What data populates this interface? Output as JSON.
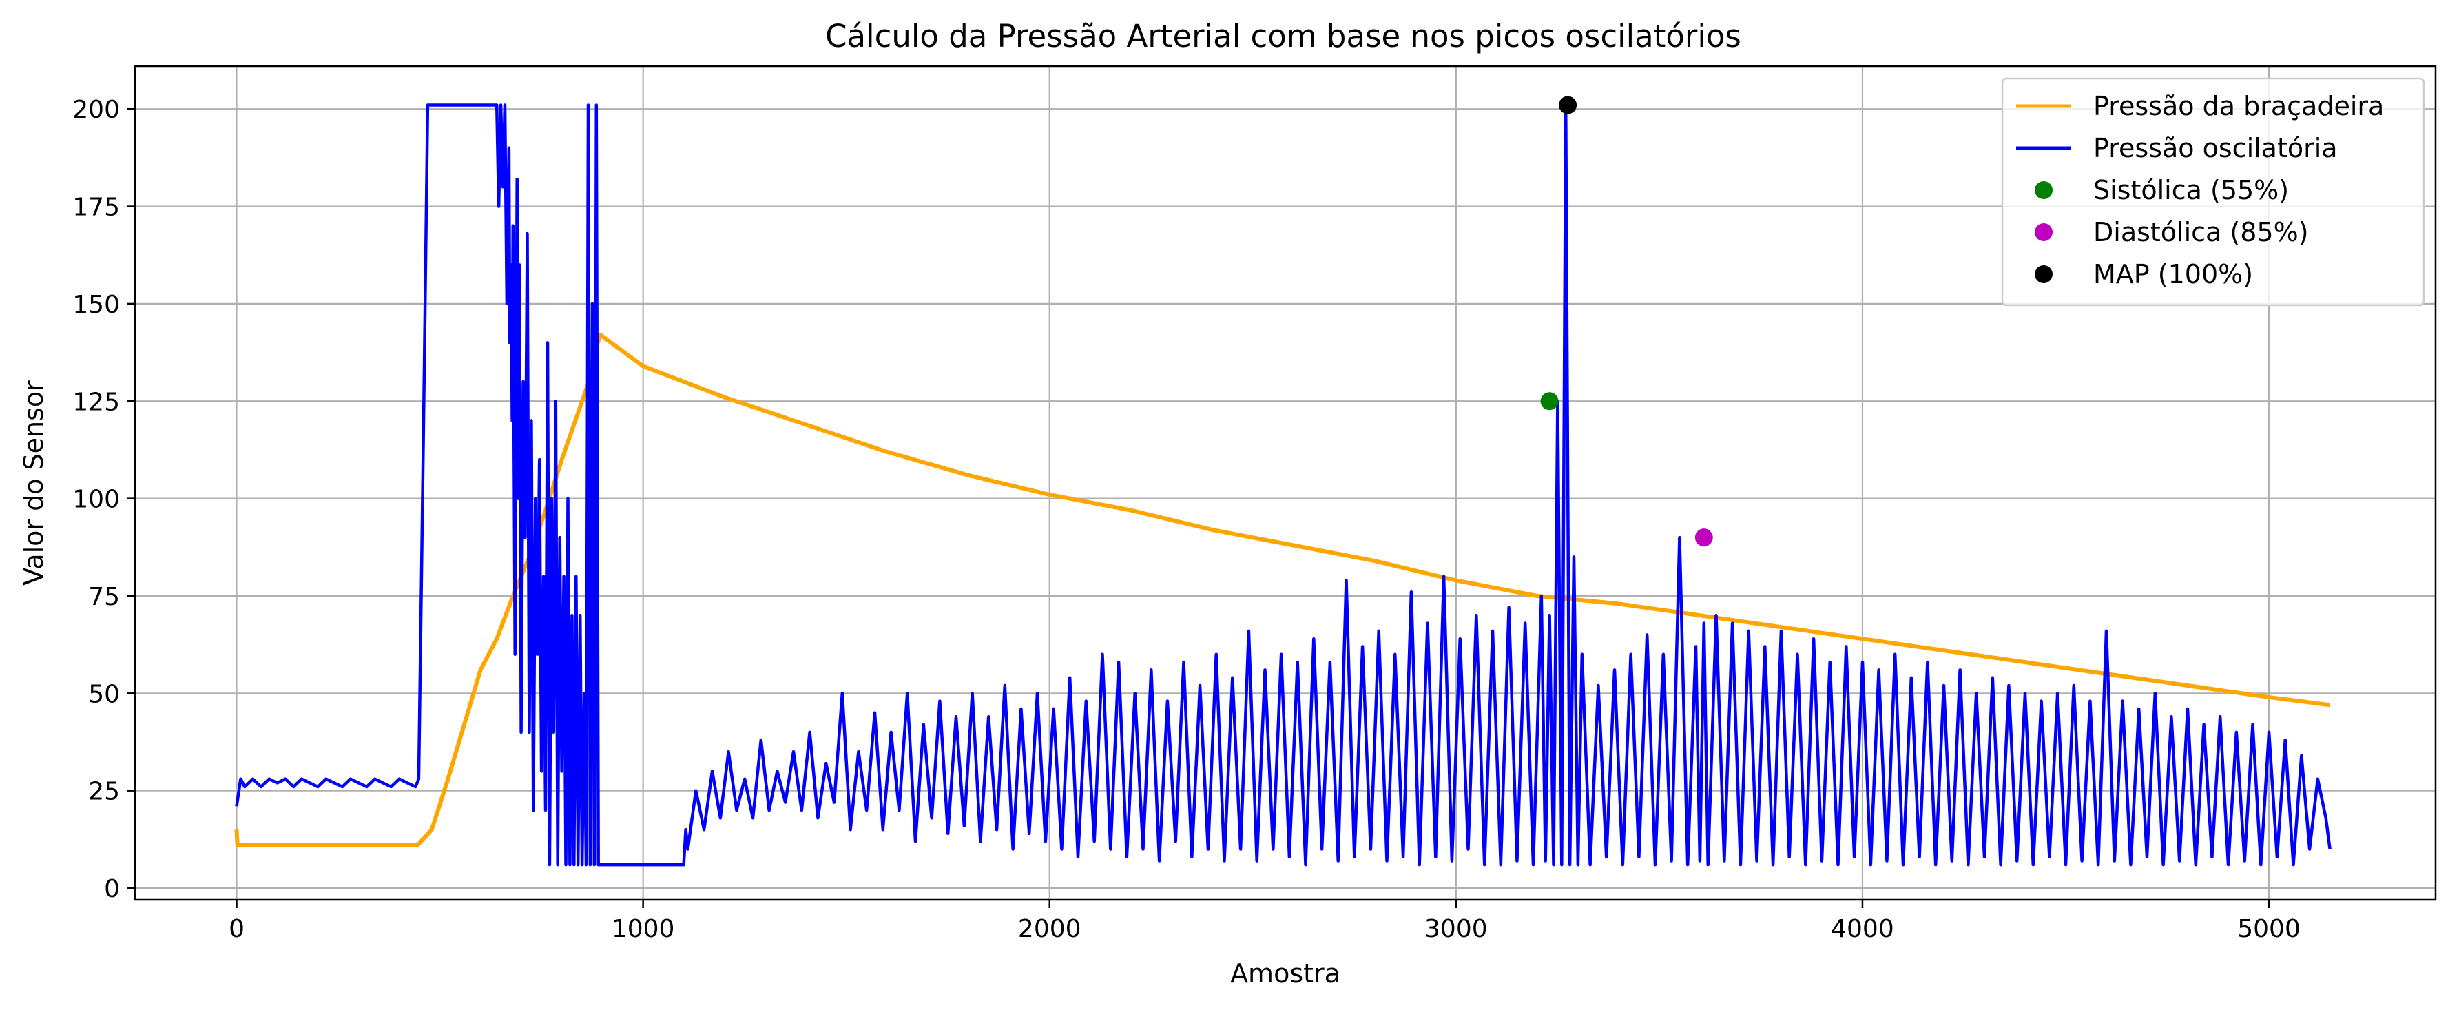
{
  "chart_data": {
    "type": "line",
    "title": "Cálculo da Pressão Arterial com base nos picos oscilatórios",
    "xlabel": "Amostra",
    "ylabel": "Valor do Sensor",
    "xlim": [
      -250,
      5410
    ],
    "ylim": [
      -3,
      211
    ],
    "xticks": [
      0,
      1000,
      2000,
      3000,
      4000,
      5000
    ],
    "yticks": [
      0,
      25,
      50,
      75,
      100,
      125,
      150,
      175,
      200
    ],
    "grid": true,
    "legend_position": "top-right",
    "series": [
      {
        "name": "Pressão da braçadeira",
        "color": "#FFA500",
        "x": [
          0,
          2,
          5,
          445,
          480,
          520,
          560,
          600,
          640,
          680,
          720,
          760,
          800,
          840,
          870,
          885,
          895,
          1000,
          1200,
          1400,
          1600,
          1800,
          2000,
          2200,
          2400,
          2600,
          2800,
          3000,
          3200,
          3400,
          3600,
          3800,
          4000,
          4200,
          4400,
          4600,
          4800,
          5000,
          5150
        ],
        "values": [
          15,
          11,
          11,
          11,
          15,
          28,
          42,
          56,
          64,
          75,
          85,
          97,
          110,
          122,
          131,
          139,
          142,
          134,
          126,
          119,
          112,
          106,
          101,
          97,
          92,
          88,
          84,
          79,
          75,
          73,
          70,
          67,
          64,
          61,
          58,
          55,
          52,
          49,
          47
        ]
      },
      {
        "name": "Pressão oscilatória",
        "color": "#0000FF",
        "x": [
          0,
          10,
          20,
          40,
          60,
          80,
          100,
          120,
          140,
          160,
          180,
          200,
          220,
          240,
          260,
          280,
          300,
          320,
          340,
          360,
          380,
          400,
          420,
          440,
          448,
          460,
          470,
          640,
          645,
          650,
          655,
          660,
          665,
          670,
          672,
          675,
          678,
          680,
          685,
          690,
          693,
          696,
          700,
          705,
          710,
          715,
          720,
          725,
          730,
          735,
          740,
          745,
          750,
          755,
          760,
          765,
          770,
          775,
          780,
          785,
          790,
          795,
          800,
          805,
          810,
          815,
          820,
          825,
          830,
          835,
          840,
          845,
          850,
          855,
          860,
          865,
          870,
          875,
          880,
          885,
          890,
          895,
          1100,
          1105,
          1110,
          1130,
          1150,
          1170,
          1190,
          1210,
          1230,
          1250,
          1270,
          1290,
          1310,
          1330,
          1350,
          1370,
          1390,
          1410,
          1430,
          1450,
          1470,
          1490,
          1510,
          1530,
          1550,
          1570,
          1590,
          1610,
          1630,
          1650,
          1670,
          1690,
          1710,
          1730,
          1750,
          1770,
          1790,
          1810,
          1830,
          1850,
          1870,
          1890,
          1910,
          1930,
          1950,
          1970,
          1990,
          2010,
          2030,
          2050,
          2070,
          2090,
          2110,
          2130,
          2150,
          2170,
          2190,
          2210,
          2230,
          2250,
          2270,
          2290,
          2310,
          2330,
          2350,
          2370,
          2390,
          2410,
          2430,
          2450,
          2470,
          2490,
          2510,
          2530,
          2550,
          2570,
          2590,
          2610,
          2630,
          2650,
          2670,
          2690,
          2710,
          2730,
          2750,
          2770,
          2790,
          2810,
          2830,
          2850,
          2870,
          2890,
          2910,
          2930,
          2950,
          2970,
          2990,
          3010,
          3030,
          3050,
          3070,
          3090,
          3110,
          3130,
          3150,
          3170,
          3190,
          3210,
          3220,
          3230,
          3240,
          3250,
          3260,
          3270,
          3280,
          3290,
          3300,
          3310,
          3330,
          3350,
          3370,
          3390,
          3410,
          3430,
          3450,
          3470,
          3490,
          3510,
          3530,
          3550,
          3570,
          3590,
          3600,
          3610,
          3620,
          3640,
          3660,
          3680,
          3700,
          3720,
          3740,
          3760,
          3780,
          3800,
          3820,
          3840,
          3860,
          3880,
          3900,
          3920,
          3940,
          3960,
          3980,
          4000,
          4020,
          4040,
          4060,
          4080,
          4100,
          4120,
          4140,
          4160,
          4180,
          4200,
          4220,
          4240,
          4260,
          4280,
          4300,
          4320,
          4340,
          4360,
          4380,
          4400,
          4420,
          4440,
          4460,
          4480,
          4500,
          4520,
          4540,
          4560,
          4580,
          4600,
          4620,
          4640,
          4660,
          4680,
          4700,
          4720,
          4740,
          4760,
          4780,
          4800,
          4820,
          4840,
          4860,
          4880,
          4900,
          4920,
          4940,
          4960,
          4980,
          5000,
          5020,
          5040,
          5060,
          5080,
          5100,
          5120,
          5140,
          5150
        ],
        "values": [
          21,
          28,
          26,
          28,
          26,
          28,
          27,
          28,
          26,
          28,
          27,
          26,
          28,
          27,
          26,
          28,
          27,
          26,
          28,
          27,
          26,
          28,
          27,
          26,
          28,
          120,
          201,
          201,
          175,
          201,
          180,
          201,
          150,
          190,
          140,
          160,
          120,
          170,
          60,
          182,
          100,
          160,
          40,
          130,
          90,
          168,
          40,
          120,
          20,
          100,
          60,
          110,
          30,
          80,
          20,
          140,
          6,
          100,
          40,
          125,
          6,
          90,
          30,
          80,
          6,
          100,
          6,
          70,
          6,
          80,
          6,
          70,
          6,
          50,
          6,
          201,
          6,
          150,
          6,
          201,
          6,
          6,
          6,
          15,
          10,
          25,
          15,
          30,
          18,
          35,
          20,
          28,
          18,
          38,
          20,
          30,
          22,
          35,
          20,
          40,
          18,
          32,
          22,
          50,
          15,
          35,
          20,
          45,
          15,
          40,
          20,
          50,
          12,
          42,
          18,
          48,
          14,
          44,
          16,
          50,
          12,
          44,
          15,
          52,
          10,
          46,
          14,
          50,
          12,
          46,
          10,
          54,
          8,
          48,
          12,
          60,
          10,
          58,
          8,
          50,
          10,
          56,
          7,
          48,
          12,
          58,
          8,
          52,
          10,
          60,
          7,
          54,
          10,
          66,
          7,
          56,
          10,
          60,
          8,
          58,
          6,
          64,
          10,
          58,
          7,
          79,
          8,
          62,
          10,
          66,
          7,
          60,
          8,
          76,
          6,
          68,
          8,
          80,
          7,
          64,
          10,
          70,
          6,
          66,
          6,
          72,
          7,
          68,
          6,
          75,
          7,
          70,
          6,
          125,
          6,
          201,
          6,
          85,
          6,
          60,
          6,
          52,
          8,
          56,
          6,
          60,
          8,
          65,
          6,
          60,
          7,
          90,
          6,
          62,
          7,
          68,
          6,
          70,
          7,
          68,
          6,
          66,
          7,
          62,
          6,
          66,
          8,
          60,
          6,
          64,
          7,
          58,
          6,
          62,
          8,
          58,
          6,
          56,
          7,
          60,
          6,
          54,
          8,
          58,
          6,
          52,
          7,
          56,
          6,
          50,
          8,
          54,
          6,
          52,
          7,
          50,
          6,
          48,
          8,
          50,
          6,
          52,
          7,
          48,
          6,
          66,
          7,
          48,
          6,
          46,
          8,
          50,
          6,
          44,
          7,
          46,
          6,
          42,
          8,
          44,
          6,
          40,
          7,
          42,
          6,
          40,
          8,
          38,
          6,
          34,
          10,
          28,
          18,
          10
        ]
      }
    ],
    "markers": [
      {
        "name": "Sistólica (55%)",
        "color": "#008000",
        "x": 3230,
        "y": 125
      },
      {
        "name": "Diastólica (85%)",
        "color": "#BF00BF",
        "x": 3610,
        "y": 90
      },
      {
        "name": "MAP (100%)",
        "color": "#000000",
        "x": 3275,
        "y": 201
      }
    ]
  }
}
